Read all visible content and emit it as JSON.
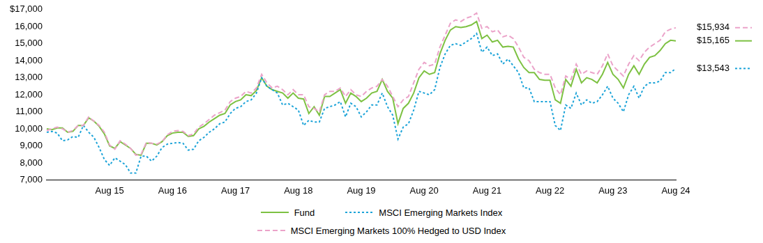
{
  "chart_data": {
    "type": "line",
    "categories": [
      null,
      null,
      null,
      null,
      null,
      null,
      null,
      null,
      null,
      null,
      null,
      null,
      "Aug 15",
      null,
      null,
      null,
      null,
      null,
      null,
      null,
      null,
      null,
      null,
      null,
      "Aug 16",
      null,
      null,
      null,
      null,
      null,
      null,
      null,
      null,
      null,
      null,
      null,
      "Aug 17",
      null,
      null,
      null,
      null,
      null,
      null,
      null,
      null,
      null,
      null,
      null,
      "Aug 18",
      null,
      null,
      null,
      null,
      null,
      null,
      null,
      null,
      null,
      null,
      null,
      "Aug 19",
      null,
      null,
      null,
      null,
      null,
      null,
      null,
      null,
      null,
      null,
      null,
      "Aug 20",
      null,
      null,
      null,
      null,
      null,
      null,
      null,
      null,
      null,
      null,
      null,
      "Aug 21",
      null,
      null,
      null,
      null,
      null,
      null,
      null,
      null,
      null,
      null,
      null,
      "Aug 22",
      null,
      null,
      null,
      null,
      null,
      null,
      null,
      null,
      null,
      null,
      null,
      "Aug 23",
      null,
      null,
      null,
      null,
      null,
      null,
      null,
      null,
      null,
      null,
      null,
      "Aug 24"
    ],
    "series": [
      {
        "name": "Fund",
        "color": "#7dc142",
        "line_style": "solid",
        "values": [
          10000,
          9950,
          10050,
          10050,
          9800,
          9850,
          10200,
          10200,
          10650,
          10450,
          10150,
          9700,
          9000,
          8850,
          9250,
          9050,
          8850,
          8500,
          8450,
          9150,
          9150,
          9050,
          9250,
          9600,
          9750,
          9800,
          9800,
          9550,
          9600,
          10000,
          10150,
          10400,
          10600,
          10800,
          10900,
          11400,
          11600,
          11700,
          12000,
          11950,
          12250,
          13000,
          12500,
          12300,
          12200,
          12100,
          11800,
          12100,
          11800,
          11750,
          10900,
          11300,
          10800,
          11900,
          11900,
          12100,
          12300,
          11500,
          12100,
          11900,
          11600,
          11800,
          12100,
          12200,
          12900,
          12200,
          11800,
          10300,
          11200,
          11500,
          12100,
          13000,
          13400,
          13200,
          13300,
          14400,
          15200,
          15800,
          16000,
          15950,
          16000,
          16100,
          16300,
          15300,
          15500,
          15100,
          15200,
          14800,
          14850,
          14800,
          14100,
          13600,
          13300,
          13300,
          12900,
          12850,
          12850,
          11700,
          11500,
          12900,
          12500,
          13500,
          12700,
          13000,
          12900,
          12700,
          13200,
          13900,
          13200,
          12900,
          12400,
          13200,
          13700,
          13200,
          13800,
          14200,
          14300,
          14600,
          15000,
          15200,
          15165
        ]
      },
      {
        "name": "MSCI Emerging Markets Index",
        "color": "#1ba3d8",
        "line_style": "dotted",
        "values": [
          9800,
          9850,
          9750,
          9300,
          9350,
          9550,
          9500,
          10200,
          9800,
          9500,
          8900,
          8200,
          7850,
          8300,
          8100,
          7900,
          7400,
          7400,
          8400,
          8400,
          8100,
          8400,
          8900,
          9100,
          9150,
          9200,
          9150,
          8750,
          8800,
          9300,
          9500,
          9800,
          10000,
          10300,
          10400,
          10900,
          11200,
          11300,
          11600,
          11700,
          12100,
          13000,
          12500,
          12300,
          12100,
          11400,
          11500,
          11300,
          11100,
          10200,
          10500,
          10400,
          10400,
          11200,
          11300,
          11400,
          11600,
          10700,
          11500,
          11300,
          10700,
          11000,
          11400,
          11400,
          12100,
          11300,
          10800,
          9400,
          10100,
          10300,
          11100,
          12200,
          12100,
          12000,
          12300,
          13600,
          14400,
          14900,
          15000,
          14900,
          15100,
          15300,
          15600,
          14500,
          14800,
          14300,
          14400,
          13800,
          14100,
          13700,
          13300,
          12400,
          12400,
          11600,
          11600,
          11600,
          11600,
          10200,
          9900,
          11400,
          11200,
          12100,
          11400,
          11700,
          11500,
          11600,
          12000,
          12500,
          11800,
          11500,
          11000,
          12000,
          12500,
          11800,
          12500,
          12700,
          12700,
          12800,
          13300,
          13300,
          13543
        ]
      },
      {
        "name": "MSCI Emerging Markets 100% Hedged to USD Index",
        "color": "#eba3c9",
        "line_style": "dashed",
        "values": [
          9900,
          10000,
          10100,
          10000,
          9800,
          9900,
          10200,
          10200,
          10700,
          10450,
          10200,
          9800,
          9050,
          8800,
          9300,
          9100,
          8850,
          8450,
          8500,
          9200,
          9150,
          9100,
          9250,
          9650,
          9850,
          9900,
          9850,
          9600,
          9700,
          10100,
          10300,
          10550,
          10800,
          10950,
          11100,
          11600,
          11800,
          11900,
          12200,
          12100,
          12400,
          13200,
          12700,
          12400,
          12500,
          12300,
          12000,
          12300,
          12000,
          12000,
          11300,
          11200,
          11000,
          12000,
          12200,
          12200,
          12400,
          11900,
          12300,
          12000,
          11900,
          12200,
          12400,
          12500,
          12900,
          12500,
          11900,
          11300,
          11700,
          11900,
          12700,
          13500,
          13900,
          13700,
          13800,
          14800,
          15500,
          16200,
          16400,
          16300,
          16500,
          16600,
          16800,
          15900,
          16000,
          15700,
          15800,
          15400,
          15500,
          15300,
          14800,
          14200,
          14000,
          13500,
          13300,
          13200,
          13200,
          12400,
          12000,
          13100,
          12900,
          13800,
          13200,
          13400,
          13300,
          13200,
          13700,
          14400,
          13700,
          13400,
          13100,
          13800,
          14300,
          14000,
          14500,
          14800,
          15000,
          15200,
          15700,
          15850,
          15934
        ]
      }
    ],
    "ylim": [
      7000,
      17000
    ],
    "yticks": [
      {
        "value": 7000,
        "label": "7,000"
      },
      {
        "value": 8000,
        "label": "8,000"
      },
      {
        "value": 9000,
        "label": "9,000"
      },
      {
        "value": 10000,
        "label": "10,000"
      },
      {
        "value": 11000,
        "label": "11,000"
      },
      {
        "value": 12000,
        "label": "12,000"
      },
      {
        "value": 13000,
        "label": "13,000"
      },
      {
        "value": 14000,
        "label": "14,000"
      },
      {
        "value": 15000,
        "label": "15,000"
      },
      {
        "value": 16000,
        "label": "16,000"
      },
      {
        "value": 17000,
        "label": "$17,000"
      }
    ],
    "annotations": [
      {
        "text": "$15,934",
        "y": 15934,
        "series": "MSCI Emerging Markets 100% Hedged to USD Index"
      },
      {
        "text": "$15,165",
        "y": 15165,
        "series": "Fund"
      },
      {
        "text": "$13,543",
        "y": 13543,
        "series": "MSCI Emerging Markets Index"
      }
    ],
    "grid": false,
    "legend": "bottom"
  }
}
